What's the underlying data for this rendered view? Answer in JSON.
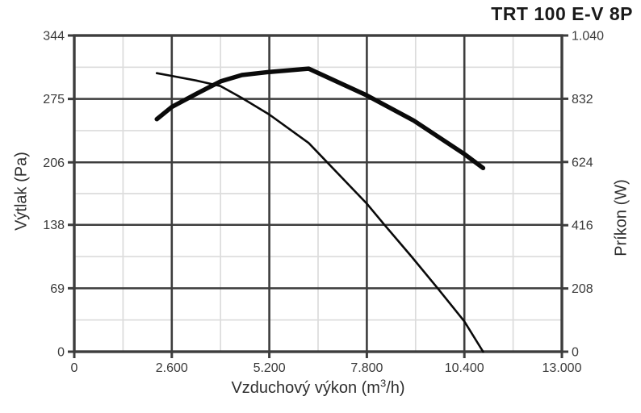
{
  "chart_data": {
    "type": "line",
    "title": "TRT 100 E-V 8P",
    "legend": "none",
    "grid": "major-dark-with-light-minors",
    "colors": {
      "curve": "#0a0a0a",
      "grid_major": "#3d3d3d",
      "grid_minor": "#dcdcdc",
      "text": "#3a3a3a",
      "title_text": "#1a1a1a"
    },
    "x_axis": {
      "label": "Vzduchový výkon (m³/h)",
      "label_parts": {
        "pre": "Vzduchový výkon (m",
        "sup": "3",
        "post": "/h)"
      },
      "min": 0,
      "max": 13000,
      "ticks": [
        {
          "value": 0,
          "label": "0"
        },
        {
          "value": 2600,
          "label": "2.600"
        },
        {
          "value": 5200,
          "label": "5.200"
        },
        {
          "value": 7800,
          "label": "7.800"
        },
        {
          "value": 10400,
          "label": "10.400"
        },
        {
          "value": 13000,
          "label": "13.000"
        }
      ]
    },
    "y_axis_left": {
      "label": "Výtlak (Pa)",
      "min": 0,
      "max": 344,
      "ticks": [
        {
          "value": 344,
          "label": "344"
        },
        {
          "value": 275,
          "label": "275"
        },
        {
          "value": 206,
          "label": "206"
        },
        {
          "value": 138,
          "label": "138"
        },
        {
          "value": 69,
          "label": "69"
        },
        {
          "value": 0,
          "label": "0"
        }
      ]
    },
    "y_axis_right": {
      "label": "Príkon (W)",
      "min": 0,
      "max": 1040,
      "ticks": [
        {
          "value": 1040,
          "label": "1.040"
        },
        {
          "value": 832,
          "label": "832"
        },
        {
          "value": 624,
          "label": "624"
        },
        {
          "value": 416,
          "label": "416"
        },
        {
          "value": 208,
          "label": "208"
        },
        {
          "value": 0,
          "label": "0"
        }
      ]
    },
    "series": [
      {
        "name": "pressure-curve",
        "axis": "left",
        "style": "thin",
        "points": [
          [
            2200,
            303
          ],
          [
            2600,
            300
          ],
          [
            3250,
            295
          ],
          [
            3900,
            289
          ],
          [
            4470,
            276
          ],
          [
            5200,
            258
          ],
          [
            6250,
            227
          ],
          [
            7800,
            161
          ],
          [
            8270,
            138
          ],
          [
            9000,
            103
          ],
          [
            9690,
            69
          ],
          [
            10400,
            33
          ],
          [
            10900,
            0
          ]
        ]
      },
      {
        "name": "power-curve",
        "axis": "right",
        "style": "thick",
        "points": [
          [
            2200,
            765
          ],
          [
            2600,
            805
          ],
          [
            3250,
            848
          ],
          [
            3900,
            889
          ],
          [
            4470,
            910
          ],
          [
            5200,
            920
          ],
          [
            6250,
            931
          ],
          [
            7800,
            843
          ],
          [
            9050,
            760
          ],
          [
            10400,
            650
          ],
          [
            10900,
            604
          ]
        ]
      }
    ]
  }
}
